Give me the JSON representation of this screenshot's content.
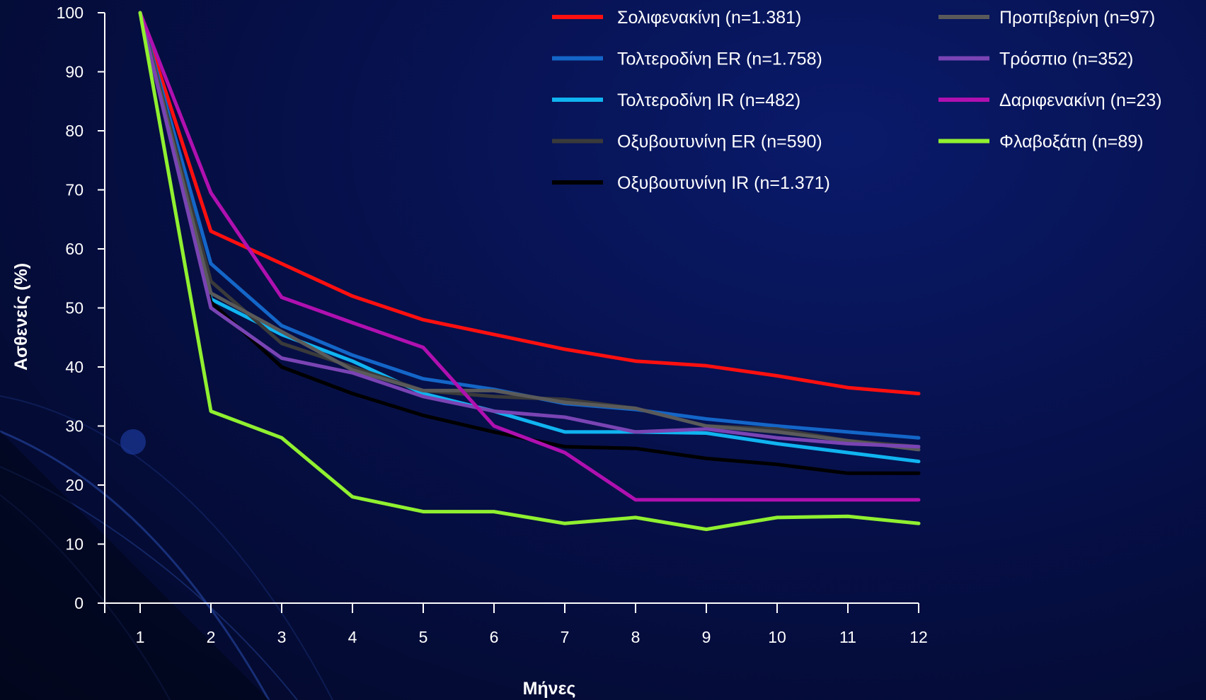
{
  "chart_data": {
    "type": "line",
    "xlabel": "Μήνες",
    "ylabel": "Ασθενείς (%)",
    "x": [
      1,
      2,
      3,
      4,
      5,
      6,
      7,
      8,
      9,
      10,
      11,
      12
    ],
    "xlim": [
      0.5,
      12
    ],
    "ylim": [
      0,
      100
    ],
    "yticks": [
      0,
      10,
      20,
      30,
      40,
      50,
      60,
      70,
      80,
      90,
      100
    ],
    "grid": false,
    "legend_position": "top-right",
    "series": [
      {
        "name": "Σολιφενακίνη (n=1.381)",
        "color": "#ff1010",
        "values": [
          100,
          63,
          57.5,
          52,
          48,
          45.5,
          43,
          41,
          40.2,
          38.5,
          36.5,
          35.5
        ]
      },
      {
        "name": "Τολτεροδίνη ER (n=1.758)",
        "color": "#1466c8",
        "values": [
          100,
          57.5,
          47,
          42,
          38,
          36.2,
          33.8,
          32.8,
          31.2,
          30,
          29,
          28
        ]
      },
      {
        "name": "Τολτεροδίνη IR (n=482)",
        "color": "#10b4f0",
        "values": [
          100,
          51.5,
          45.5,
          41,
          35.5,
          32.5,
          29,
          29,
          28.8,
          27,
          25.5,
          24
        ]
      },
      {
        "name": "Οξυβουτυνίνη ER (n=590)",
        "color": "#3a3a3a",
        "values": [
          100,
          54.5,
          44,
          40,
          36,
          35,
          34.5,
          33,
          30,
          29.5,
          27.5,
          26.5
        ]
      },
      {
        "name": "Οξυβουτυνίνη IR (n=1.371)",
        "color": "#000000",
        "values": [
          100,
          51,
          40,
          35.5,
          31.8,
          29,
          26.5,
          26.2,
          24.5,
          23.5,
          22,
          22
        ]
      },
      {
        "name": "Προπιβερίνη (n=97)",
        "color": "#5a5a5a",
        "values": [
          100,
          52.5,
          46,
          39.5,
          36,
          36,
          34,
          33,
          30,
          29,
          27.5,
          26
        ]
      },
      {
        "name": "Τρόσπιο (n=352)",
        "color": "#7a44b4",
        "values": [
          100,
          50,
          41.5,
          39,
          35,
          32.5,
          31.5,
          29,
          29.5,
          28,
          27,
          26.5
        ]
      },
      {
        "name": "Δαριφενακίνη (n=23)",
        "color": "#b010b0",
        "values": [
          100,
          69.5,
          51.8,
          47.5,
          43.3,
          30,
          25.5,
          17.5,
          17.5,
          17.5,
          17.5,
          17.5
        ]
      },
      {
        "name": "Φλαβοξάτη (n=89)",
        "color": "#90f030",
        "values": [
          100,
          32.5,
          28,
          18,
          15.5,
          15.5,
          13.5,
          14.5,
          12.5,
          14.5,
          14.7,
          13.5
        ]
      }
    ]
  }
}
